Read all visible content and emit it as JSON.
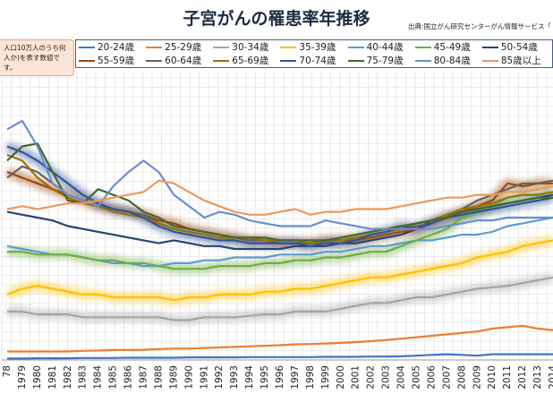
{
  "chart_data": {
    "type": "line",
    "title": "子宮がんの罹患率年推移",
    "source_note": "出典:国立がん研究センターがん情報サービス「",
    "note": "人口10万人のうち何人か)を表す数値です。",
    "xlabel": "",
    "ylabel": "",
    "grid": true,
    "legend_position": "top",
    "x": [
      1978,
      1979,
      1980,
      1981,
      1982,
      1983,
      1984,
      1985,
      1986,
      1987,
      1988,
      1989,
      1990,
      1991,
      1992,
      1993,
      1994,
      1995,
      1996,
      1997,
      1998,
      1999,
      2000,
      2001,
      2002,
      2003,
      2004,
      2005,
      2006,
      2007,
      2008,
      2009,
      2010,
      2011,
      2012,
      2013,
      2014
    ],
    "x_tick_labels": [
      "78",
      "1979",
      "1980",
      "1981",
      "1982",
      "1983",
      "1984",
      "1985",
      "1986",
      "1987",
      "1988",
      "1989",
      "1990",
      "1991",
      "1992",
      "1993",
      "1994",
      "1995",
      "1996",
      "1997",
      "1998",
      "1999",
      "2000",
      "2001",
      "2002",
      "2003",
      "2004",
      "2005",
      "2006",
      "2007",
      "2008",
      "2009",
      "2010",
      "2011",
      "2012",
      "2013",
      "2014"
    ],
    "ylim": [
      0,
      100
    ],
    "series": [
      {
        "name": "20-24歳",
        "color": "#4472c4",
        "glow": false,
        "values": [
          0.5,
          0.5,
          0.6,
          0.6,
          0.6,
          0.7,
          0.7,
          0.7,
          0.8,
          0.8,
          0.8,
          0.8,
          0.9,
          0.9,
          0.9,
          0.9,
          1.0,
          1.0,
          1.0,
          1.0,
          1.0,
          1.1,
          1.1,
          1.1,
          1.2,
          1.2,
          1.3,
          1.5,
          1.8,
          2.0,
          1.8,
          1.5,
          2.0,
          2.0,
          2.0,
          2.0,
          2.0
        ]
      },
      {
        "name": "25-29歳",
        "color": "#ed7d31",
        "glow": false,
        "values": [
          3,
          3,
          3,
          3,
          3,
          3.2,
          3.3,
          3.5,
          3.5,
          3.6,
          3.8,
          4,
          4,
          4.2,
          4.4,
          4.6,
          4.8,
          5,
          5.2,
          5.5,
          5.6,
          5.8,
          6,
          6.3,
          6.6,
          7,
          7.5,
          8,
          8.5,
          9,
          9.5,
          10,
          11,
          11.5,
          12,
          11,
          10.5
        ]
      },
      {
        "name": "30-34歳",
        "color": "#a5a5a5",
        "glow": true,
        "values": [
          17,
          17,
          16,
          16,
          16,
          15,
          15,
          15,
          15,
          15,
          15,
          14,
          14,
          15,
          15,
          15,
          15.5,
          16,
          16,
          17,
          17,
          17,
          18,
          19,
          20,
          20,
          21,
          22,
          22,
          23,
          24,
          25,
          25.5,
          26,
          27,
          28,
          29
        ]
      },
      {
        "name": "35-39歳",
        "color": "#ffc000",
        "glow": true,
        "values": [
          23,
          25,
          26,
          25,
          24,
          23,
          23,
          22,
          22,
          22,
          22,
          21,
          22,
          22,
          23,
          23,
          23,
          24,
          24,
          25,
          25,
          26,
          27,
          28,
          29,
          29,
          30,
          31,
          32,
          33,
          34,
          36,
          37,
          38,
          40,
          41,
          42
        ]
      },
      {
        "name": "40-44歳",
        "color": "#5b9bd5",
        "glow": false,
        "values": [
          40,
          39,
          38,
          37,
          37,
          36,
          35,
          34,
          34,
          33,
          33,
          34,
          34,
          35,
          35,
          36,
          36,
          36,
          37,
          37,
          37,
          38,
          38,
          39,
          40,
          40,
          41,
          42,
          42,
          43,
          44,
          44,
          45,
          47,
          48,
          49,
          50
        ]
      },
      {
        "name": "45-49歳",
        "color": "#70ad47",
        "glow": true,
        "values": [
          38,
          38,
          37,
          37,
          37,
          36,
          35,
          35,
          34,
          34,
          33,
          32,
          32,
          32,
          33,
          33,
          33,
          34,
          34,
          35,
          35,
          36,
          36,
          37,
          38,
          38,
          40,
          42,
          44,
          46,
          50,
          52,
          54,
          57,
          58,
          58,
          59
        ]
      },
      {
        "name": "50-54歳",
        "color": "#264478",
        "glow": false,
        "values": [
          52,
          51,
          50,
          49,
          47,
          46,
          45,
          44,
          43,
          42,
          41,
          42,
          41,
          40,
          40,
          39,
          39,
          39,
          39,
          40,
          40,
          40,
          41,
          41,
          42,
          43,
          44,
          46,
          49,
          51,
          52,
          53,
          54,
          55,
          56,
          57,
          58
        ]
      },
      {
        "name": "55-59歳",
        "color": "#9e480e",
        "glow": true,
        "values": [
          66,
          64,
          62,
          60,
          58,
          56,
          54,
          53,
          52,
          51,
          49,
          48,
          46,
          45,
          44,
          43,
          42,
          42,
          41,
          41,
          41,
          42,
          42,
          42,
          43,
          44,
          45,
          46,
          48,
          50,
          52,
          54,
          56,
          62,
          61,
          62,
          62
        ]
      },
      {
        "name": "60-64歳",
        "color": "#636363",
        "glow": false,
        "values": [
          64,
          68,
          66,
          62,
          58,
          56,
          54,
          53,
          52,
          51,
          48,
          46,
          45,
          44,
          43,
          43,
          42,
          42,
          41,
          41,
          41,
          42,
          42,
          43,
          44,
          45,
          46,
          47,
          48,
          50,
          53,
          56,
          58,
          60,
          62,
          62,
          63
        ]
      },
      {
        "name": "65-69歳",
        "color": "#997300",
        "glow": false,
        "values": [
          72,
          70,
          64,
          60,
          57,
          55,
          54,
          52,
          51,
          50,
          48,
          46,
          45,
          44,
          43,
          43,
          43,
          42,
          42,
          42,
          41,
          41,
          42,
          43,
          44,
          45,
          46,
          48,
          49,
          51,
          53,
          54,
          55,
          57,
          58,
          58,
          59
        ]
      },
      {
        "name": "70-74歳",
        "color": "#2f5597",
        "glow": true,
        "values": [
          75,
          73,
          70,
          66,
          62,
          58,
          55,
          53,
          52,
          50,
          47,
          45,
          44,
          43,
          42,
          42,
          41,
          41,
          41,
          41,
          40,
          41,
          41,
          42,
          44,
          45,
          47,
          46,
          48,
          50,
          51,
          52,
          53,
          54,
          55,
          56,
          57
        ]
      },
      {
        "name": "75-79歳",
        "color": "#43682b",
        "glow": false,
        "values": [
          70,
          75,
          76,
          66,
          56,
          55,
          60,
          58,
          56,
          52,
          50,
          47,
          46,
          45,
          44,
          43,
          43,
          43,
          42,
          42,
          42,
          42,
          43,
          44,
          45,
          46,
          47,
          48,
          49,
          50,
          52,
          53,
          54,
          55,
          56,
          57,
          57
        ]
      },
      {
        "name": "80-84歳",
        "color": "#698ed0",
        "glow": false,
        "values": [
          81,
          84,
          75,
          62,
          58,
          56,
          54,
          61,
          66,
          70,
          66,
          58,
          54,
          50,
          52,
          51,
          49,
          48,
          47,
          47,
          47,
          49,
          48,
          47,
          46,
          46,
          46,
          46,
          46,
          47,
          48,
          49,
          49,
          50,
          50,
          50,
          50
        ]
      },
      {
        "name": "85歳以上",
        "color": "#f1975a",
        "glow": false,
        "values": [
          53,
          54,
          53,
          54,
          55,
          55,
          56,
          57,
          58,
          59,
          63,
          62,
          59,
          56,
          54,
          52,
          51,
          51,
          52,
          53,
          51,
          52,
          52,
          53,
          53,
          53,
          54,
          55,
          56,
          57,
          57,
          58,
          58,
          59,
          59,
          60,
          61
        ]
      }
    ]
  }
}
